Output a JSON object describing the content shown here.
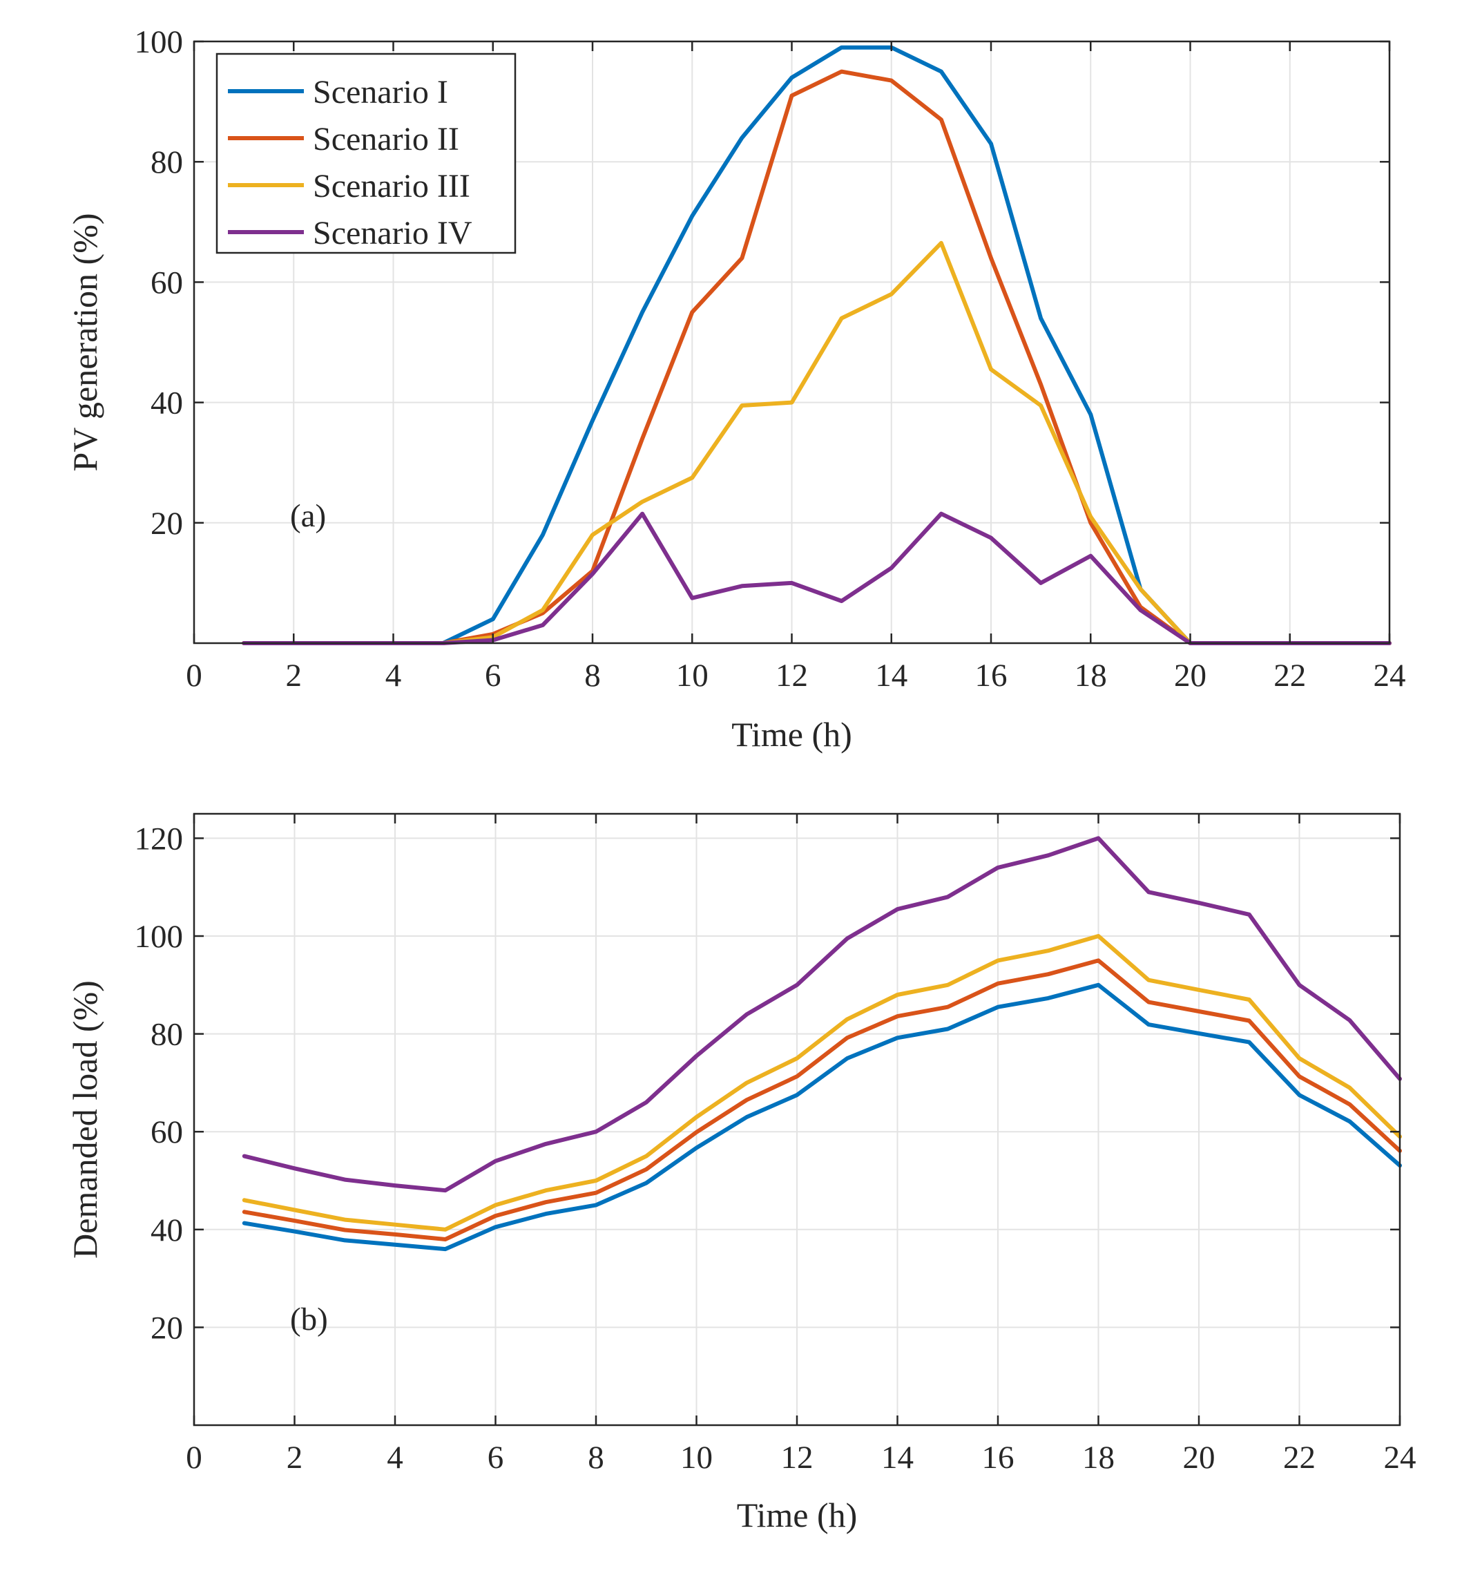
{
  "chart_data": [
    {
      "type": "line",
      "panel_label": "(a)",
      "xlabel": "Time (h)",
      "ylabel": "PV generation (%)",
      "xlim": [
        0,
        24
      ],
      "ylim": [
        0,
        100
      ],
      "xticks": [
        0,
        2,
        4,
        6,
        8,
        10,
        12,
        14,
        16,
        18,
        20,
        22,
        24
      ],
      "yticks": [
        20,
        40,
        60,
        80,
        100
      ],
      "grid": true,
      "legend": {
        "position": "top-left"
      },
      "x": [
        1,
        2,
        3,
        4,
        5,
        6,
        7,
        8,
        9,
        10,
        11,
        12,
        13,
        14,
        15,
        16,
        17,
        18,
        19,
        20,
        21,
        22,
        23,
        24
      ],
      "series": [
        {
          "name": "Scenario I",
          "color": "#0072BD",
          "values": [
            0,
            0,
            0,
            0,
            0,
            4,
            18,
            37,
            55,
            71,
            84,
            94,
            99,
            99,
            95,
            83,
            54,
            38,
            9,
            0,
            0,
            0,
            0,
            0
          ]
        },
        {
          "name": "Scenario II",
          "color": "#D95319",
          "values": [
            0,
            0,
            0,
            0,
            0,
            1.5,
            5,
            12,
            34,
            55,
            64,
            91,
            95,
            93.5,
            87,
            64,
            43,
            20,
            6,
            0,
            0,
            0,
            0,
            0
          ]
        },
        {
          "name": "Scenario III",
          "color": "#EDB120",
          "values": [
            0,
            0,
            0,
            0,
            0,
            1,
            5.5,
            18,
            23.5,
            27.5,
            39.5,
            40,
            54,
            58,
            66.5,
            45.5,
            39.5,
            21,
            9,
            0,
            0,
            0,
            0,
            0
          ]
        },
        {
          "name": "Scenario IV",
          "color": "#7E2F8E",
          "values": [
            0,
            0,
            0,
            0,
            0,
            0.5,
            3,
            11.5,
            21.5,
            7.5,
            9.5,
            10,
            7,
            12.5,
            21.5,
            17.5,
            10,
            14.5,
            5.5,
            0,
            0,
            0,
            0,
            0
          ]
        }
      ]
    },
    {
      "type": "line",
      "panel_label": "(b)",
      "xlabel": "Time (h)",
      "ylabel": "Demanded load (%)",
      "xlim": [
        0,
        24
      ],
      "ylim": [
        0,
        125
      ],
      "xticks": [
        0,
        2,
        4,
        6,
        8,
        10,
        12,
        14,
        16,
        18,
        20,
        22,
        24
      ],
      "yticks": [
        20,
        40,
        60,
        80,
        100,
        120
      ],
      "grid": true,
      "x": [
        1,
        2,
        3,
        4,
        5,
        6,
        7,
        8,
        9,
        10,
        11,
        12,
        13,
        14,
        15,
        16,
        17,
        18,
        19,
        20,
        21,
        22,
        23,
        24
      ],
      "series": [
        {
          "name": "Scenario I",
          "color": "#0072BD",
          "values": [
            41.3,
            39.6,
            37.8,
            36.9,
            36,
            40.5,
            43.2,
            45,
            49.5,
            56.7,
            63,
            67.5,
            75,
            79.2,
            81,
            85.5,
            87.3,
            90,
            81.9,
            80.1,
            78.3,
            67.5,
            62.1,
            53.1
          ]
        },
        {
          "name": "Scenario II",
          "color": "#D95319",
          "values": [
            43.6,
            41.8,
            39.9,
            39,
            38,
            42.8,
            45.6,
            47.5,
            52.3,
            59.9,
            66.5,
            71.3,
            79.2,
            83.6,
            85.5,
            90.3,
            92.2,
            95,
            86.5,
            84.6,
            82.7,
            71.3,
            65.6,
            56.1
          ]
        },
        {
          "name": "Scenario III",
          "color": "#EDB120",
          "values": [
            46,
            44,
            42,
            41,
            40,
            45,
            48,
            50,
            55,
            63,
            70,
            75,
            83,
            88,
            90,
            95,
            97,
            100,
            91,
            89,
            87,
            75,
            69,
            59
          ]
        },
        {
          "name": "Scenario IV",
          "color": "#7E2F8E",
          "values": [
            55,
            52.5,
            50.2,
            49,
            48,
            54,
            57.5,
            60,
            66,
            75.5,
            84,
            90,
            99.5,
            105.5,
            108,
            114,
            116.5,
            120,
            109,
            106.8,
            104.4,
            90,
            82.8,
            70.8
          ]
        }
      ]
    }
  ]
}
